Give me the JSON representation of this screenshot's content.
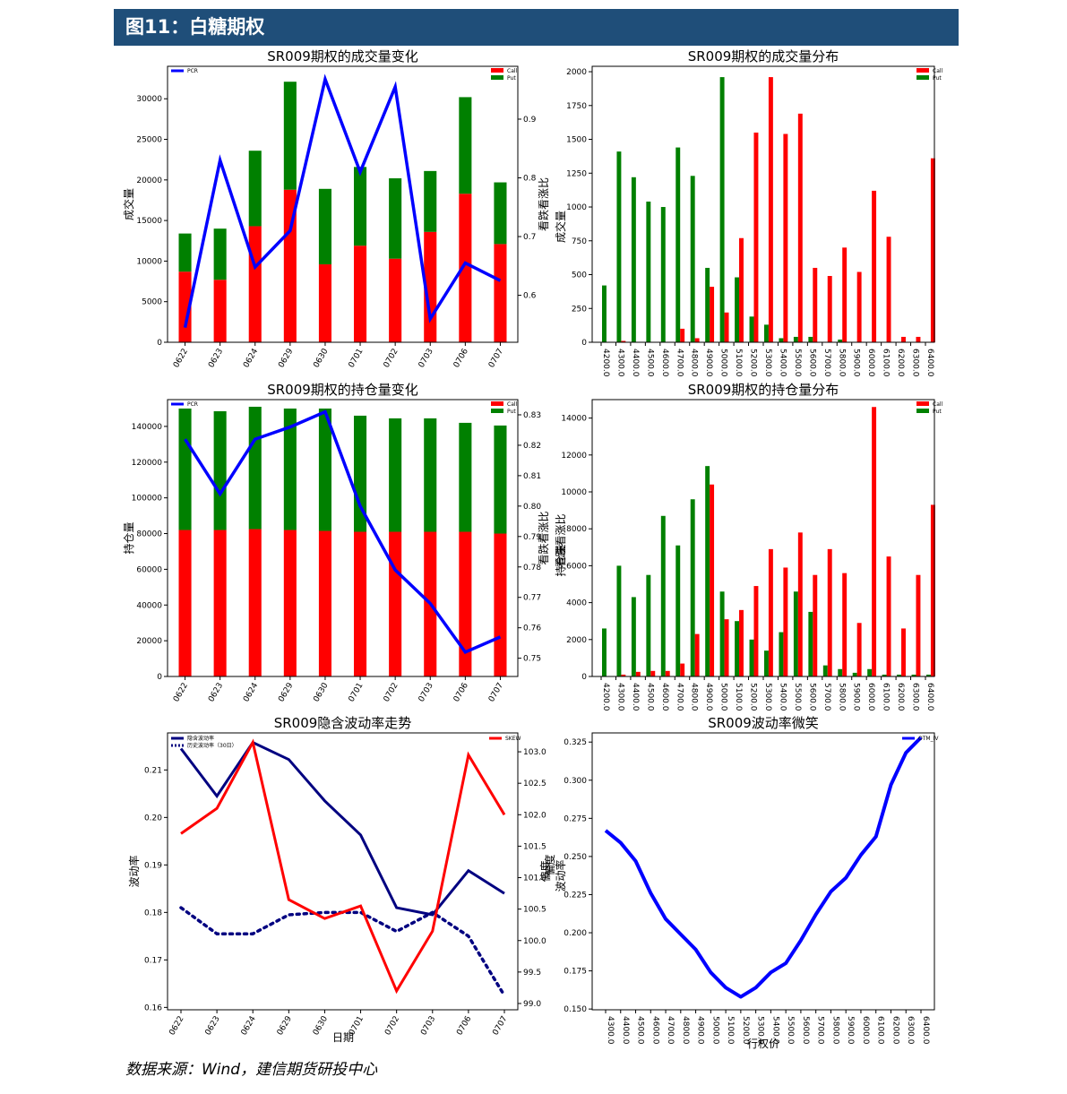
{
  "header": {
    "title": "图11：白糖期权"
  },
  "footer": {
    "source": "数据来源：Wind，建信期货研投中心"
  },
  "colors": {
    "call": "#ff0000",
    "put": "#008000",
    "pcr": "#0000ff",
    "iv": "#000080",
    "skew": "#ff0000",
    "otm_iv": "#0000ff",
    "header_bg": "#1f4e79"
  },
  "chart_data": [
    {
      "id": "c1",
      "type": "bar",
      "title": "SR009期权的成交量变化",
      "xlabel": "",
      "ylabel": "成交量",
      "y2label": "看跌看涨比",
      "categories": [
        "0622",
        "0623",
        "0624",
        "0629",
        "0630",
        "0701",
        "0702",
        "0703",
        "0706",
        "0707"
      ],
      "stacked": true,
      "series": [
        {
          "name": "Call",
          "axis": "left",
          "values": [
            8700,
            7700,
            14300,
            18800,
            9600,
            11900,
            10300,
            13600,
            18300,
            12100
          ]
        },
        {
          "name": "Put",
          "axis": "left",
          "values": [
            4700,
            6300,
            9300,
            13300,
            9300,
            9700,
            9900,
            7500,
            11900,
            7600
          ]
        },
        {
          "name": "PCR",
          "type": "line",
          "axis": "right",
          "values": [
            0.545,
            0.83,
            0.648,
            0.71,
            0.968,
            0.81,
            0.955,
            0.56,
            0.655,
            0.625
          ]
        }
      ],
      "ylim": [
        0,
        34000
      ],
      "y2lim": [
        0.52,
        0.99
      ],
      "yticks": [
        0,
        5000,
        10000,
        15000,
        20000,
        25000,
        30000
      ],
      "y2ticks": [
        0.6,
        0.7,
        0.8,
        0.9
      ],
      "legend_left": [
        "PCR"
      ],
      "legend_right": [
        "Call",
        "Put"
      ]
    },
    {
      "id": "c2",
      "type": "bar",
      "title": "SR009期权的成交量分布",
      "xlabel": "",
      "ylabel": "成交量",
      "categories": [
        "4200.0",
        "4300.0",
        "4400.0",
        "4500.0",
        "4600.0",
        "4700.0",
        "4800.0",
        "4900.0",
        "5000.0",
        "5100.0",
        "5200.0",
        "5300.0",
        "5400.0",
        "5500.0",
        "5600.0",
        "5700.0",
        "5800.0",
        "5900.0",
        "6000.0",
        "6100.0",
        "6200.0",
        "6300.0",
        "6400.0"
      ],
      "grouped": true,
      "series": [
        {
          "name": "Call",
          "values": [
            0,
            10,
            0,
            0,
            0,
            100,
            30,
            410,
            220,
            770,
            1550,
            1960,
            1540,
            1690,
            550,
            490,
            700,
            520,
            1120,
            780,
            40,
            40,
            1360
          ]
        },
        {
          "name": "Put",
          "values": [
            420,
            1410,
            1220,
            1040,
            1000,
            1440,
            1230,
            550,
            1960,
            480,
            190,
            130,
            30,
            40,
            40,
            0,
            20,
            0,
            0,
            0,
            0,
            0,
            0
          ]
        }
      ],
      "ylim": [
        0,
        2040
      ],
      "yticks": [
        0,
        250,
        500,
        750,
        1000,
        1250,
        1500,
        1750,
        2000
      ],
      "legend": [
        "Call",
        "Put"
      ]
    },
    {
      "id": "c3",
      "type": "bar",
      "title": "SR009期权的持仓量变化",
      "xlabel": "",
      "ylabel": "持仓量",
      "y2label": "看跌看涨比",
      "categories": [
        "0622",
        "0623",
        "0624",
        "0629",
        "0630",
        "0701",
        "0702",
        "0703",
        "0706",
        "0707"
      ],
      "stacked": true,
      "series": [
        {
          "name": "Call",
          "axis": "left",
          "values": [
            82000,
            82000,
            82500,
            82000,
            81500,
            81000,
            81000,
            81000,
            81000,
            80000
          ]
        },
        {
          "name": "Put",
          "axis": "left",
          "values": [
            68000,
            66500,
            68500,
            68000,
            68500,
            65000,
            63500,
            63500,
            61000,
            60500
          ]
        },
        {
          "name": "PCR",
          "type": "line",
          "axis": "right",
          "values": [
            0.822,
            0.804,
            0.822,
            0.826,
            0.831,
            0.8,
            0.779,
            0.768,
            0.752,
            0.757
          ]
        }
      ],
      "ylim": [
        0,
        155000
      ],
      "y2lim": [
        0.744,
        0.835
      ],
      "yticks": [
        0,
        20000,
        40000,
        60000,
        80000,
        100000,
        120000,
        140000
      ],
      "y2ticks": [
        0.75,
        0.76,
        0.77,
        0.78,
        0.79,
        0.8,
        0.81,
        0.82,
        0.83
      ],
      "legend_left": [
        "PCR"
      ],
      "legend_right": [
        "Call",
        "Put"
      ]
    },
    {
      "id": "c4",
      "type": "bar",
      "title": "SR009期权的持仓量分布",
      "xlabel": "",
      "ylabel": "持仓量",
      "y2label": "看跌看涨比",
      "categories": [
        "4200.0",
        "4300.0",
        "4400.0",
        "4500.0",
        "4600.0",
        "4700.0",
        "4800.0",
        "4900.0",
        "5000.0",
        "5100.0",
        "5200.0",
        "5300.0",
        "5400.0",
        "5500.0",
        "5600.0",
        "5700.0",
        "5800.0",
        "5900.0",
        "6000.0",
        "6100.0",
        "6200.0",
        "6300.0",
        "6400.0"
      ],
      "grouped": true,
      "series": [
        {
          "name": "Call",
          "values": [
            0,
            100,
            250,
            300,
            300,
            700,
            2300,
            10400,
            3100,
            3600,
            4900,
            6900,
            5900,
            7800,
            5500,
            6900,
            5600,
            2900,
            14600,
            6500,
            2600,
            5500,
            9300
          ]
        },
        {
          "name": "Put",
          "values": [
            2600,
            6000,
            4300,
            5500,
            8700,
            7100,
            9600,
            11400,
            4600,
            3000,
            2000,
            1400,
            2400,
            4600,
            3500,
            600,
            400,
            200,
            400,
            100,
            100,
            100,
            100
          ]
        }
      ],
      "ylim": [
        0,
        15000
      ],
      "yticks": [
        0,
        2000,
        4000,
        6000,
        8000,
        10000,
        12000,
        14000
      ],
      "legend": [
        "Call",
        "Put"
      ]
    },
    {
      "id": "c5",
      "type": "line",
      "title": "SR009隐含波动率走势",
      "xlabel": "日期",
      "ylabel": "波动率",
      "y2label": "偏度",
      "categories": [
        "0622",
        "0623",
        "0624",
        "0629",
        "0630",
        "0701",
        "0702",
        "0703",
        "0706",
        "0707"
      ],
      "series": [
        {
          "name": "隐含波动率",
          "axis": "left",
          "style": "solid",
          "values": [
            0.2145,
            0.2045,
            0.2158,
            0.2122,
            0.2035,
            0.1963,
            0.181,
            0.1795,
            0.1888,
            0.184
          ]
        },
        {
          "name": "历史波动率（30日）",
          "axis": "left",
          "style": "dotted",
          "values": [
            0.181,
            0.1755,
            0.1755,
            0.1795,
            0.18,
            0.18,
            0.176,
            0.18,
            0.175,
            0.1625
          ]
        },
        {
          "name": "SKEW",
          "axis": "right",
          "style": "solid",
          "values": [
            101.7,
            102.1,
            103.15,
            100.65,
            100.35,
            100.55,
            99.2,
            100.15,
            102.95,
            102.0
          ]
        }
      ],
      "ylim": [
        0.1595,
        0.2178
      ],
      "y2lim": [
        98.9,
        103.3
      ],
      "yticks": [
        0.16,
        0.17,
        0.18,
        0.19,
        0.2,
        0.21
      ],
      "y2ticks": [
        99.0,
        99.5,
        100.0,
        100.5,
        101.0,
        101.5,
        102.0,
        102.5,
        103.0
      ],
      "legend_left": [
        "隐含波动率",
        "历史波动率（30日）"
      ],
      "legend_right": [
        "SKEW"
      ]
    },
    {
      "id": "c6",
      "type": "line",
      "title": "SR009波动率微笑",
      "xlabel": "行权价",
      "ylabel": "波动率",
      "y2label": "偏度",
      "categories": [
        "4300.0",
        "4400.0",
        "4500.0",
        "4600.0",
        "4700.0",
        "4800.0",
        "4900.0",
        "5000.0",
        "5100.0",
        "5200.0",
        "5300.0",
        "5400.0",
        "5500.0",
        "5600.0",
        "5700.0",
        "5800.0",
        "5900.0",
        "6000.0",
        "6100.0",
        "6200.0",
        "6300.0",
        "6400.0"
      ],
      "series": [
        {
          "name": "OTM_IV",
          "values": [
            0.267,
            0.259,
            0.247,
            0.226,
            0.209,
            0.199,
            0.189,
            0.174,
            0.164,
            0.158,
            0.164,
            0.174,
            0.18,
            0.195,
            0.212,
            0.227,
            0.236,
            0.251,
            0.263,
            0.297,
            0.318,
            0.328
          ]
        }
      ],
      "ylim": [
        0.1495,
        0.331
      ],
      "yticks": [
        0.15,
        0.175,
        0.2,
        0.225,
        0.25,
        0.275,
        0.3,
        0.325
      ],
      "legend": [
        "OTM_IV"
      ]
    }
  ]
}
